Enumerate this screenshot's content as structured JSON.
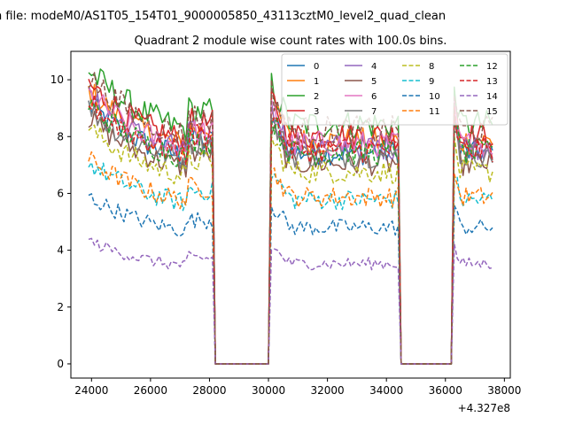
{
  "suptitle": "n file: modeM0/AS1T05_154T01_9000005850_43113cztM0_level2_quad_clean",
  "chart_data": {
    "type": "line",
    "title": "Quadrant 2 module wise count rates with 100.0s bins.",
    "xlabel": "",
    "ylabel": "",
    "x_offset_label": "+4.327e8",
    "xlim": [
      23300,
      38200
    ],
    "ylim": [
      -0.5,
      11.0
    ],
    "xticks": [
      24000,
      26000,
      28000,
      30000,
      32000,
      34000,
      36000,
      38000
    ],
    "xtick_labels": [
      "24000",
      "26000",
      "28000",
      "30000",
      "32000",
      "34000",
      "36000",
      "38000"
    ],
    "yticks": [
      0,
      2,
      4,
      6,
      8,
      10
    ],
    "ytick_labels": [
      "0",
      "2",
      "4",
      "6",
      "8",
      "10"
    ],
    "grid": false,
    "legend_position": "upper-right",
    "legend_columns": 4,
    "x_units_note": "x values are seconds relative to the printed offset +4.327e8",
    "segments": [
      [
        23900,
        28100
      ],
      [
        30100,
        34400
      ],
      [
        36300,
        37600
      ]
    ],
    "gaps": [
      [
        28200,
        30000
      ],
      [
        34500,
        36200
      ]
    ],
    "series": [
      {
        "name": "0",
        "color": "#1f77b4",
        "dash": "solid",
        "level": 7.6
      },
      {
        "name": "1",
        "color": "#ff7f0e",
        "dash": "solid",
        "level": 8.0
      },
      {
        "name": "2",
        "color": "#2ca02c",
        "dash": "solid",
        "level": 8.6
      },
      {
        "name": "3",
        "color": "#d62728",
        "dash": "solid",
        "level": 8.2
      },
      {
        "name": "4",
        "color": "#9467bd",
        "dash": "solid",
        "level": 7.8
      },
      {
        "name": "5",
        "color": "#8c564b",
        "dash": "solid",
        "level": 7.2
      },
      {
        "name": "6",
        "color": "#e377c2",
        "dash": "solid",
        "level": 7.9
      },
      {
        "name": "7",
        "color": "#7f7f7f",
        "dash": "solid",
        "level": 7.5
      },
      {
        "name": "8",
        "color": "#bcbd22",
        "dash": "dashed",
        "level": 6.9
      },
      {
        "name": "9",
        "color": "#17becf",
        "dash": "dashed",
        "level": 5.9
      },
      {
        "name": "10",
        "color": "#1f77b4",
        "dash": "dashed",
        "level": 4.9
      },
      {
        "name": "11",
        "color": "#ff7f0e",
        "dash": "dashed",
        "level": 6.0
      },
      {
        "name": "12",
        "color": "#2ca02c",
        "dash": "dashed",
        "level": 7.6
      },
      {
        "name": "13",
        "color": "#d62728",
        "dash": "dashed",
        "level": 7.7
      },
      {
        "name": "14",
        "color": "#9467bd",
        "dash": "dashed",
        "level": 3.6
      },
      {
        "name": "15",
        "color": "#8c564b",
        "dash": "dashed",
        "level": 8.4
      }
    ]
  }
}
